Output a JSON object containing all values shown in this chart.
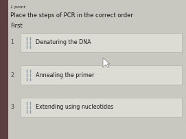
{
  "bg_color": "#c8c8c0",
  "row_bg_color": "#dcdcd4",
  "row_border_color": "#b0b0a8",
  "left_bar_color": "#5a4040",
  "point_text": "1 point",
  "question_text": "Place the steps of PCR in the correct order",
  "label_text": "First",
  "rows": [
    {
      "number": "1",
      "text": "Denaturing the DNA"
    },
    {
      "number": "2",
      "text": "Annealing the primer"
    },
    {
      "number": "3",
      "text": "Extending using nucleotides"
    }
  ],
  "point_fontsize": 4.5,
  "question_fontsize": 6.0,
  "label_fontsize": 6.0,
  "row_fontsize": 5.8,
  "number_fontsize": 5.8,
  "drag_icon_color": "#8a9aaa",
  "text_color": "#1a1a1a",
  "number_color": "#444444",
  "cursor_color": "#888888"
}
